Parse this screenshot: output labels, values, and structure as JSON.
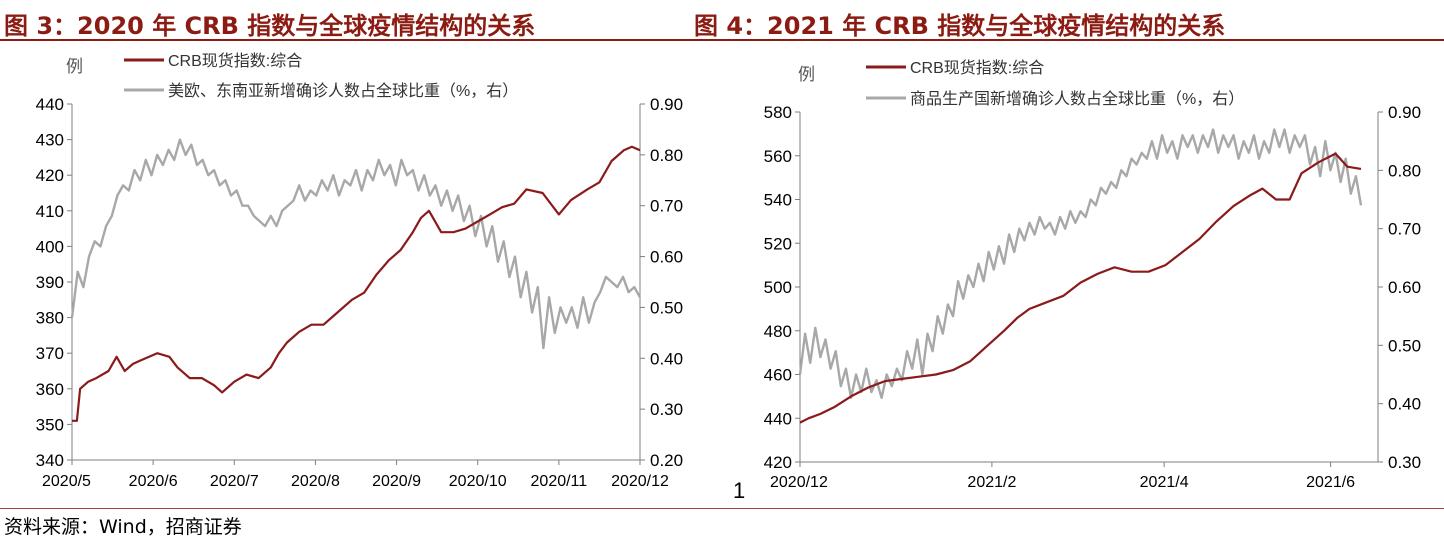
{
  "titles": {
    "left": "图 3：2020 年 CRB 指数与全球疫情结构的关系",
    "right": "图 4：2021 年 CRB 指数与全球疫情结构的关系"
  },
  "source": "资料来源：Wind，招商证券",
  "page_number": "1",
  "colors": {
    "title": "#8c1c13",
    "crb": "#8b1a1a",
    "share": "#a8a8a8"
  },
  "chart_data": [
    {
      "type": "line",
      "unit_label": "例",
      "x_ticks": [
        "2020/5",
        "2020/6",
        "2020/7",
        "2020/8",
        "2020/9",
        "2020/10",
        "2020/11",
        "2020/12"
      ],
      "x_range": [
        0,
        7
      ],
      "y_left": {
        "range": [
          340,
          440
        ],
        "ticks": [
          "340",
          "350",
          "360",
          "370",
          "380",
          "390",
          "400",
          "410",
          "420",
          "430",
          "440"
        ]
      },
      "y_right": {
        "range": [
          0.2,
          0.9
        ],
        "ticks": [
          "0.20",
          "0.30",
          "0.40",
          "0.50",
          "0.60",
          "0.70",
          "0.80",
          "0.90"
        ]
      },
      "legend_position": "top-left",
      "series": [
        {
          "name": "CRB现货指数:综合",
          "axis": "left",
          "color": "#8b1a1a",
          "x": [
            0.0,
            0.06,
            0.1,
            0.2,
            0.3,
            0.45,
            0.55,
            0.65,
            0.75,
            0.85,
            0.95,
            1.05,
            1.2,
            1.3,
            1.45,
            1.6,
            1.75,
            1.85,
            2.0,
            2.15,
            2.3,
            2.45,
            2.55,
            2.65,
            2.8,
            2.95,
            3.1,
            3.25,
            3.45,
            3.6,
            3.75,
            3.9,
            4.05,
            4.2,
            4.3,
            4.4,
            4.55,
            4.7,
            4.85,
            5.0,
            5.15,
            5.3,
            5.45,
            5.6,
            5.8,
            6.0,
            6.15,
            6.35,
            6.5,
            6.65,
            6.8,
            6.9,
            7.0
          ],
          "y": [
            351,
            351,
            360,
            362,
            363,
            365,
            369,
            365,
            367,
            368,
            369,
            370,
            369,
            366,
            363,
            363,
            361,
            359,
            362,
            364,
            363,
            366,
            370,
            373,
            376,
            378,
            378,
            381,
            385,
            387,
            392,
            396,
            399,
            404,
            408,
            410,
            404,
            404,
            405,
            407,
            409,
            411,
            412,
            416,
            415,
            409,
            413,
            416,
            418,
            424,
            427,
            428,
            427
          ]
        },
        {
          "name": "美欧、东南亚新增确诊人数占全球比重（%，右）",
          "axis": "right",
          "color": "#a8a8a8",
          "x": [
            0.0,
            0.07,
            0.14,
            0.21,
            0.28,
            0.35,
            0.42,
            0.49,
            0.56,
            0.63,
            0.7,
            0.77,
            0.84,
            0.91,
            0.98,
            1.05,
            1.12,
            1.19,
            1.26,
            1.33,
            1.4,
            1.47,
            1.54,
            1.61,
            1.68,
            1.75,
            1.82,
            1.89,
            1.96,
            2.03,
            2.1,
            2.17,
            2.24,
            2.31,
            2.38,
            2.45,
            2.52,
            2.59,
            2.66,
            2.73,
            2.8,
            2.87,
            2.94,
            3.01,
            3.08,
            3.15,
            3.22,
            3.29,
            3.36,
            3.43,
            3.5,
            3.57,
            3.64,
            3.71,
            3.78,
            3.85,
            3.92,
            3.99,
            4.06,
            4.13,
            4.2,
            4.27,
            4.34,
            4.41,
            4.48,
            4.55,
            4.62,
            4.69,
            4.76,
            4.83,
            4.9,
            4.97,
            5.04,
            5.11,
            5.18,
            5.25,
            5.32,
            5.39,
            5.46,
            5.53,
            5.6,
            5.67,
            5.74,
            5.81,
            5.88,
            5.95,
            6.02,
            6.09,
            6.16,
            6.23,
            6.3,
            6.37,
            6.44,
            6.51,
            6.58,
            6.65,
            6.72,
            6.79,
            6.86,
            6.93,
            7.0
          ],
          "y": [
            0.48,
            0.57,
            0.54,
            0.6,
            0.63,
            0.62,
            0.66,
            0.68,
            0.72,
            0.74,
            0.73,
            0.77,
            0.75,
            0.79,
            0.76,
            0.8,
            0.78,
            0.81,
            0.79,
            0.83,
            0.8,
            0.82,
            0.78,
            0.79,
            0.76,
            0.77,
            0.74,
            0.75,
            0.72,
            0.73,
            0.7,
            0.7,
            0.68,
            0.67,
            0.66,
            0.68,
            0.66,
            0.69,
            0.7,
            0.71,
            0.74,
            0.71,
            0.73,
            0.72,
            0.75,
            0.73,
            0.76,
            0.72,
            0.75,
            0.74,
            0.77,
            0.73,
            0.77,
            0.75,
            0.79,
            0.76,
            0.78,
            0.74,
            0.79,
            0.76,
            0.77,
            0.73,
            0.76,
            0.72,
            0.74,
            0.7,
            0.73,
            0.69,
            0.72,
            0.67,
            0.7,
            0.64,
            0.68,
            0.62,
            0.66,
            0.59,
            0.63,
            0.56,
            0.6,
            0.52,
            0.57,
            0.49,
            0.54,
            0.42,
            0.52,
            0.45,
            0.5,
            0.47,
            0.5,
            0.46,
            0.52,
            0.47,
            0.51,
            0.53,
            0.56,
            0.55,
            0.54,
            0.56,
            0.53,
            0.54,
            0.52
          ]
        }
      ]
    },
    {
      "type": "line",
      "unit_label": "例",
      "x_ticks": [
        "2020/12",
        "2021/2",
        "2021/4",
        "2021/6"
      ],
      "x_range": [
        0,
        3.4
      ],
      "y_left": {
        "range": [
          420,
          580
        ],
        "ticks": [
          "420",
          "440",
          "460",
          "480",
          "500",
          "520",
          "540",
          "560",
          "580"
        ]
      },
      "y_right": {
        "range": [
          0.3,
          0.9
        ],
        "ticks": [
          "0.30",
          "0.40",
          "0.50",
          "0.60",
          "0.70",
          "0.80",
          "0.90"
        ]
      },
      "legend_position": "top-left",
      "series": [
        {
          "name": "CRB现货指数:综合",
          "axis": "left",
          "color": "#8b1a1a",
          "x": [
            0.0,
            0.05,
            0.12,
            0.2,
            0.3,
            0.4,
            0.5,
            0.6,
            0.7,
            0.8,
            0.9,
            1.0,
            1.1,
            1.2,
            1.28,
            1.35,
            1.45,
            1.55,
            1.65,
            1.75,
            1.85,
            1.95,
            2.05,
            2.15,
            2.25,
            2.35,
            2.45,
            2.55,
            2.65,
            2.72,
            2.8,
            2.88,
            2.95,
            3.05,
            3.15,
            3.22,
            3.3
          ],
          "y": [
            438,
            440,
            442,
            445,
            450,
            454,
            457,
            458,
            459,
            460,
            462,
            466,
            473,
            480,
            486,
            490,
            493,
            496,
            502,
            506,
            509,
            507,
            507,
            510,
            516,
            522,
            530,
            537,
            542,
            545,
            540,
            540,
            552,
            557,
            561,
            555,
            554
          ]
        },
        {
          "name": "商品生产国新增确诊人数占全球比重（%，右）",
          "axis": "right",
          "color": "#a8a8a8",
          "x": [
            0.0,
            0.03,
            0.06,
            0.09,
            0.12,
            0.15,
            0.18,
            0.21,
            0.24,
            0.27,
            0.3,
            0.33,
            0.36,
            0.39,
            0.42,
            0.45,
            0.48,
            0.51,
            0.54,
            0.57,
            0.6,
            0.63,
            0.66,
            0.69,
            0.72,
            0.75,
            0.78,
            0.81,
            0.84,
            0.87,
            0.9,
            0.93,
            0.96,
            0.99,
            1.02,
            1.05,
            1.08,
            1.11,
            1.14,
            1.17,
            1.2,
            1.23,
            1.26,
            1.29,
            1.32,
            1.35,
            1.38,
            1.41,
            1.44,
            1.47,
            1.5,
            1.53,
            1.56,
            1.59,
            1.62,
            1.65,
            1.68,
            1.71,
            1.74,
            1.77,
            1.8,
            1.83,
            1.86,
            1.89,
            1.92,
            1.95,
            1.98,
            2.01,
            2.04,
            2.07,
            2.1,
            2.13,
            2.16,
            2.19,
            2.22,
            2.25,
            2.28,
            2.31,
            2.34,
            2.37,
            2.4,
            2.43,
            2.46,
            2.49,
            2.52,
            2.55,
            2.58,
            2.61,
            2.64,
            2.67,
            2.7,
            2.73,
            2.76,
            2.79,
            2.82,
            2.85,
            2.88,
            2.91,
            2.94,
            2.97,
            3.0,
            3.03,
            3.06,
            3.09,
            3.12,
            3.15,
            3.18,
            3.21,
            3.24,
            3.27,
            3.3
          ],
          "y": [
            0.45,
            0.52,
            0.47,
            0.53,
            0.48,
            0.51,
            0.46,
            0.49,
            0.43,
            0.46,
            0.41,
            0.45,
            0.42,
            0.46,
            0.42,
            0.44,
            0.41,
            0.45,
            0.43,
            0.46,
            0.44,
            0.49,
            0.46,
            0.51,
            0.45,
            0.52,
            0.49,
            0.55,
            0.52,
            0.57,
            0.55,
            0.61,
            0.58,
            0.62,
            0.6,
            0.64,
            0.61,
            0.66,
            0.63,
            0.67,
            0.64,
            0.69,
            0.66,
            0.7,
            0.68,
            0.71,
            0.69,
            0.72,
            0.7,
            0.71,
            0.69,
            0.72,
            0.7,
            0.73,
            0.71,
            0.73,
            0.72,
            0.75,
            0.74,
            0.77,
            0.76,
            0.78,
            0.77,
            0.8,
            0.79,
            0.82,
            0.81,
            0.83,
            0.82,
            0.85,
            0.82,
            0.86,
            0.83,
            0.85,
            0.82,
            0.86,
            0.84,
            0.86,
            0.83,
            0.86,
            0.84,
            0.87,
            0.83,
            0.86,
            0.84,
            0.86,
            0.82,
            0.85,
            0.83,
            0.86,
            0.82,
            0.85,
            0.83,
            0.87,
            0.84,
            0.87,
            0.83,
            0.86,
            0.84,
            0.86,
            0.81,
            0.84,
            0.79,
            0.85,
            0.8,
            0.83,
            0.78,
            0.82,
            0.76,
            0.79,
            0.74
          ]
        }
      ]
    }
  ]
}
